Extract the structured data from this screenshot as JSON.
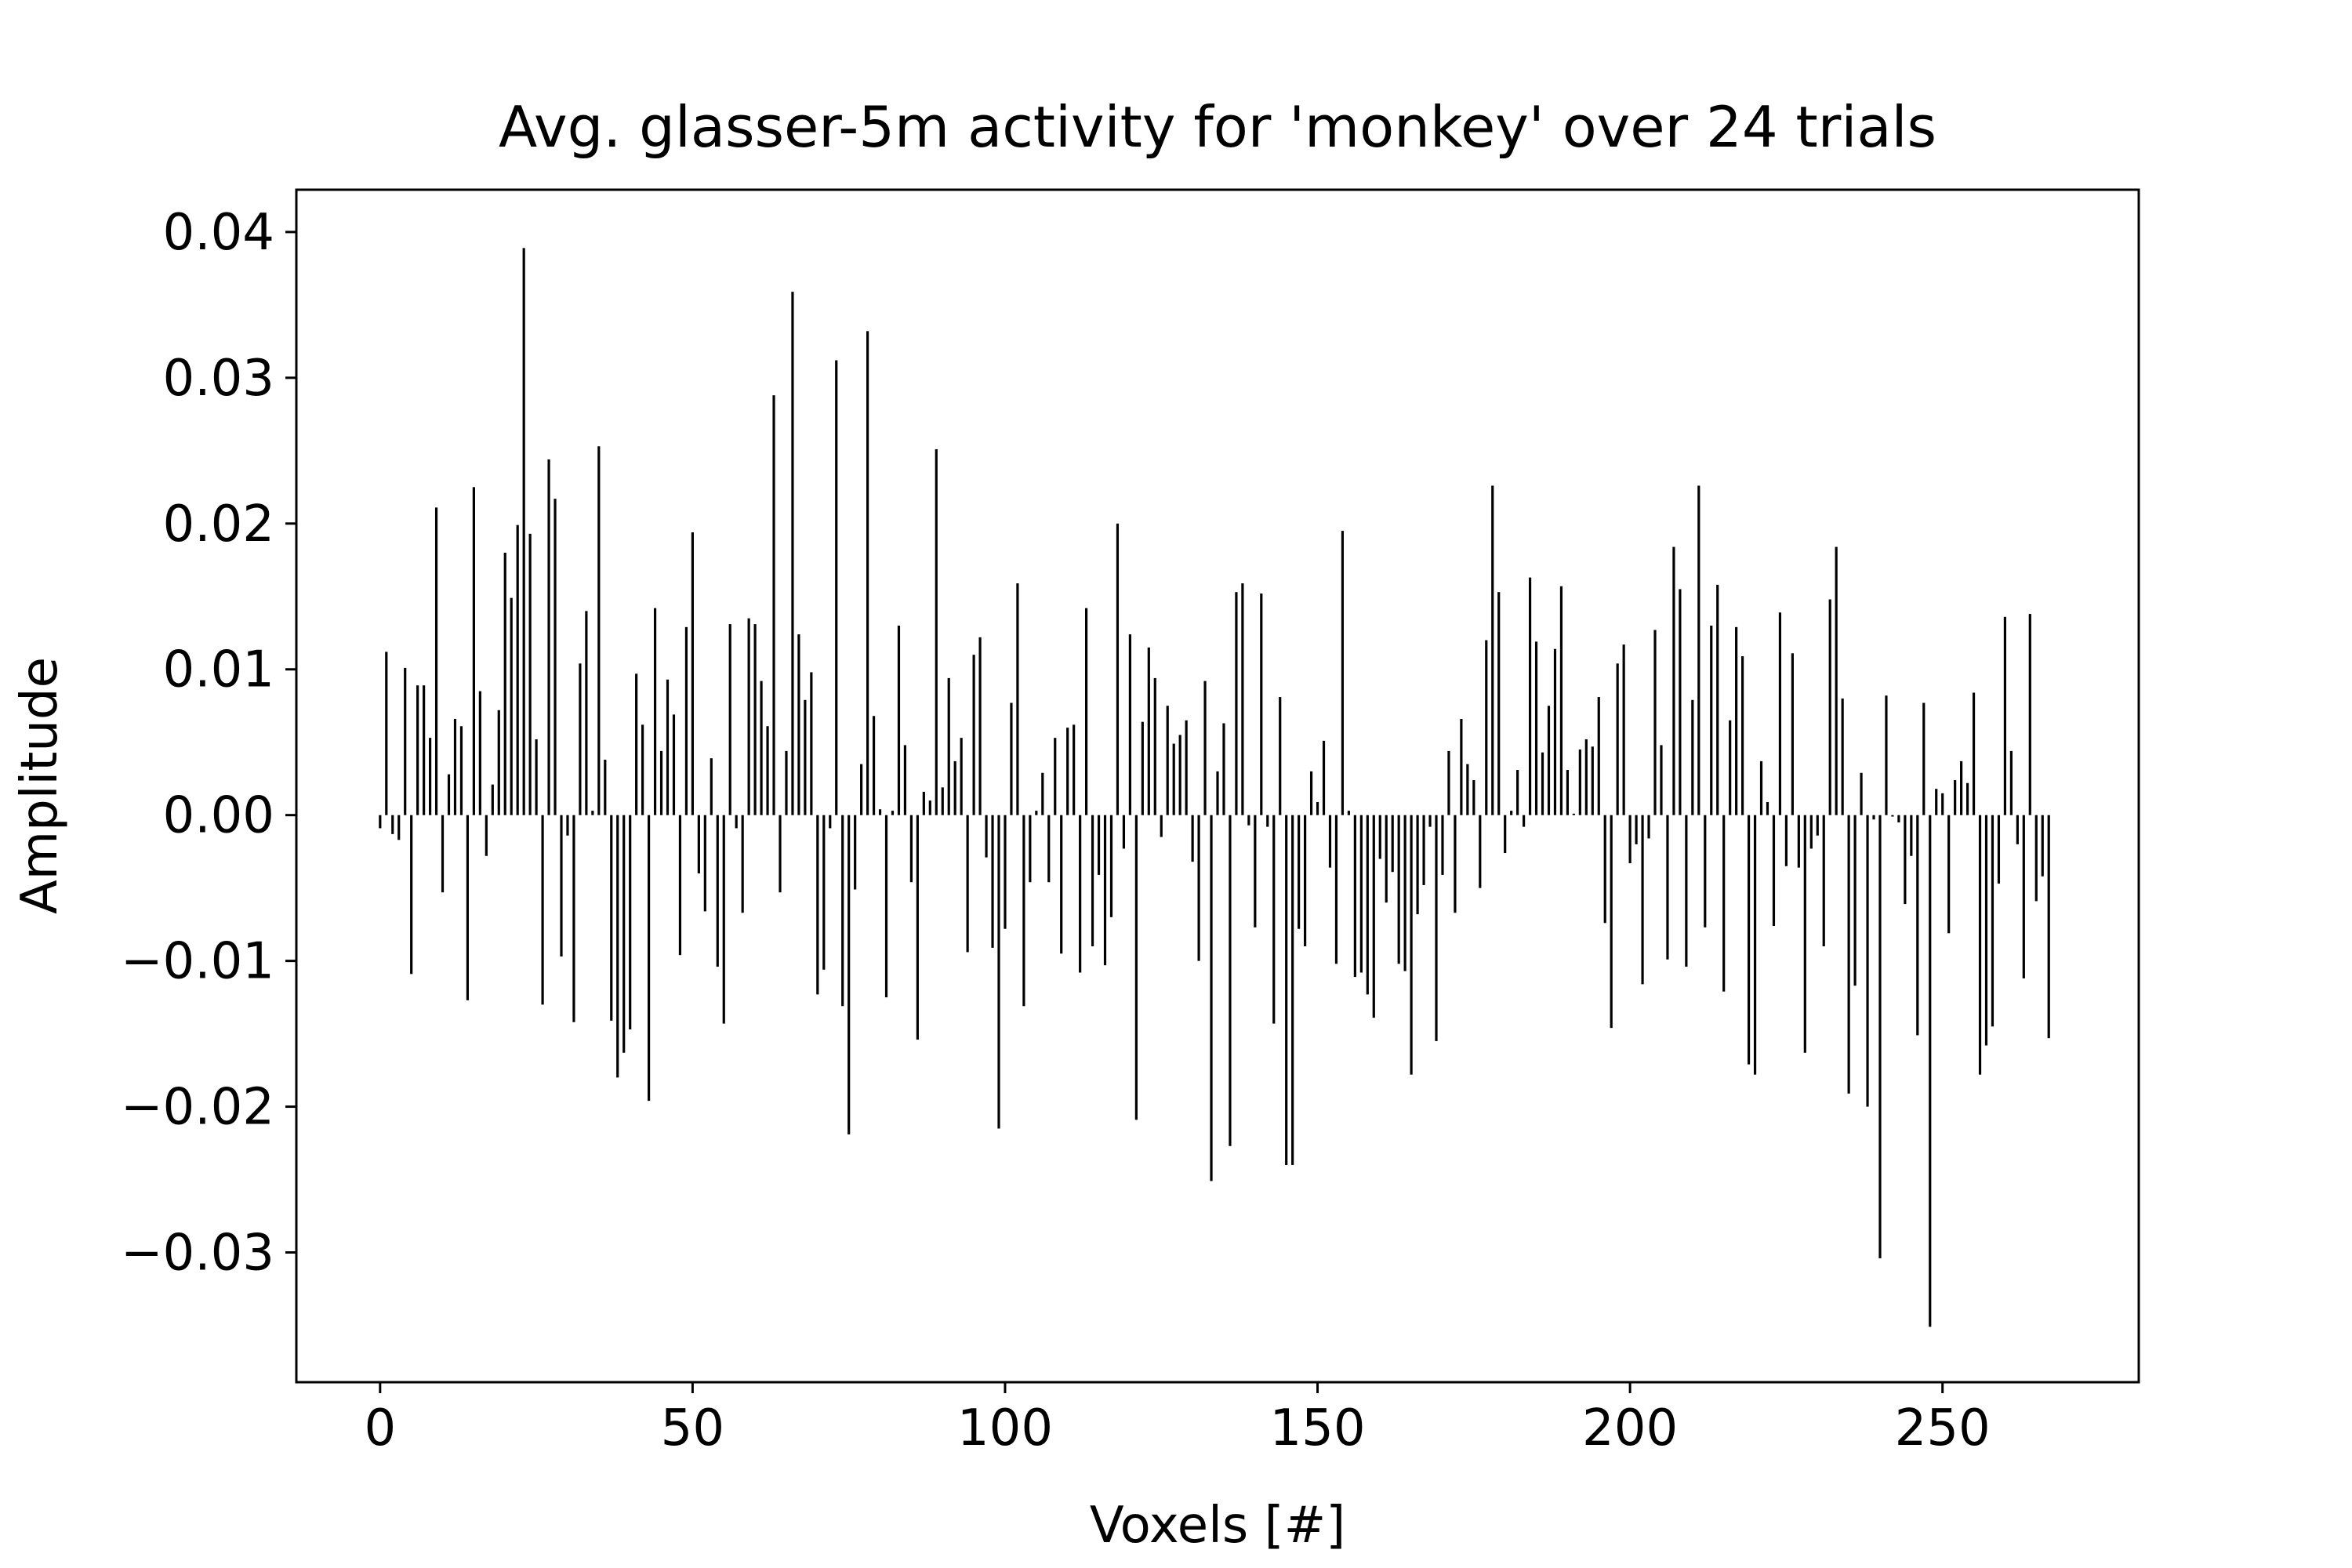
{
  "chart_data": {
    "type": "bar",
    "title": "Avg. glasser-5m activity for 'monkey' over 24 trials",
    "xlabel": "Voxels [#]",
    "ylabel": "Amplitude",
    "xlim": [
      -13.4,
      281.4
    ],
    "ylim": [
      -0.0389,
      0.0429
    ],
    "xticks": [
      0,
      50,
      100,
      150,
      200,
      250
    ],
    "xtick_labels": [
      "0",
      "50",
      "100",
      "150",
      "200",
      "250"
    ],
    "yticks": [
      -0.03,
      -0.02,
      -0.01,
      0.0,
      0.01,
      0.02,
      0.03,
      0.04
    ],
    "ytick_labels": [
      "−0.03",
      "−0.02",
      "−0.01",
      "0.00",
      "0.01",
      "0.02",
      "0.03",
      "0.04"
    ],
    "grid": false,
    "legend": "none",
    "bar_color": "#000000",
    "bar_width": 0.4,
    "x_start": 0,
    "values": [
      -0.0009,
      0.0112,
      -0.0013,
      -0.0017,
      0.0101,
      -0.0109,
      0.0089,
      0.0089,
      0.0053,
      0.0211,
      -0.0053,
      0.0028,
      0.0066,
      0.0061,
      -0.0127,
      0.0225,
      0.0085,
      -0.0028,
      0.0021,
      0.0072,
      0.018,
      0.0149,
      0.0199,
      0.0389,
      0.0193,
      0.0052,
      -0.013,
      0.0244,
      0.0217,
      -0.0097,
      -0.0014,
      -0.0142,
      0.0104,
      0.014,
      0.0003,
      0.0253,
      0.0038,
      -0.0141,
      -0.018,
      -0.0163,
      -0.0147,
      0.0097,
      0.0062,
      -0.0196,
      0.0142,
      0.0044,
      0.0093,
      0.0069,
      -0.0096,
      0.0129,
      0.0194,
      -0.004,
      -0.0066,
      0.0039,
      -0.0104,
      -0.0143,
      0.0131,
      -0.0009,
      -0.0067,
      0.0135,
      0.0131,
      0.0092,
      0.0061,
      0.0288,
      -0.0053,
      0.0044,
      0.0359,
      0.0124,
      0.0079,
      0.0098,
      -0.0123,
      -0.0106,
      -0.0009,
      0.0312,
      -0.0131,
      -0.0219,
      -0.0051,
      0.0035,
      0.0332,
      0.0068,
      0.0004,
      -0.0125,
      0.0003,
      0.013,
      0.0048,
      -0.0046,
      -0.0154,
      0.0016,
      0.001,
      0.0251,
      0.0019,
      0.0094,
      0.0037,
      0.0053,
      -0.0094,
      0.011,
      0.0122,
      -0.0029,
      -0.0091,
      -0.0215,
      -0.0078,
      0.0077,
      0.0159,
      -0.0131,
      -0.0046,
      0.0003,
      0.0029,
      -0.0046,
      0.0053,
      -0.0095,
      0.006,
      0.0062,
      -0.0108,
      0.0142,
      -0.009,
      -0.0041,
      -0.0103,
      -0.007,
      0.02,
      -0.0023,
      0.0124,
      -0.0209,
      0.0064,
      0.0115,
      0.0094,
      -0.0015,
      0.0075,
      0.0049,
      0.0055,
      0.0065,
      -0.0032,
      -0.01,
      0.0092,
      -0.0251,
      0.003,
      0.0063,
      -0.0227,
      0.0153,
      0.0159,
      -0.0007,
      -0.0077,
      0.0152,
      -0.0008,
      -0.0143,
      0.0081,
      -0.024,
      -0.024,
      -0.0078,
      -0.009,
      0.003,
      0.0009,
      0.0051,
      -0.0036,
      -0.0102,
      0.0195,
      0.0003,
      -0.0111,
      -0.0108,
      -0.0123,
      -0.0139,
      -0.003,
      -0.006,
      -0.0039,
      -0.0102,
      -0.0107,
      -0.0178,
      -0.0068,
      -0.0048,
      -0.0008,
      -0.0155,
      -0.0041,
      0.0044,
      -0.0067,
      0.0066,
      0.0035,
      0.0024,
      -0.005,
      0.012,
      0.0226,
      0.0153,
      -0.0026,
      0.0003,
      0.0031,
      -0.0008,
      0.0163,
      0.0119,
      0.0043,
      0.0075,
      0.0114,
      0.0157,
      0.0031,
      0.0001,
      0.0045,
      0.0052,
      0.0047,
      0.0081,
      -0.0074,
      -0.0146,
      0.0104,
      0.0117,
      -0.0033,
      -0.002,
      -0.0116,
      -0.0016,
      0.0127,
      0.0048,
      -0.0099,
      0.0184,
      0.0155,
      -0.0104,
      0.0079,
      0.0226,
      -0.0077,
      0.013,
      0.0158,
      -0.0121,
      0.0065,
      0.0129,
      0.0109,
      -0.0171,
      -0.0178,
      0.0037,
      0.0009,
      -0.0076,
      0.0139,
      -0.0035,
      0.0111,
      -0.0036,
      -0.0163,
      -0.0023,
      -0.0014,
      -0.009,
      0.0148,
      0.0184,
      0.008,
      -0.0191,
      -0.0117,
      0.0029,
      -0.02,
      -0.0003,
      -0.0304,
      0.0082,
      -0.0001,
      -0.0005,
      -0.0061,
      -0.0028,
      -0.0151,
      0.0077,
      -0.0351,
      0.0018,
      0.0015,
      -0.0081,
      0.0024,
      0.0037,
      0.0022,
      0.0084,
      -0.0178,
      -0.0158,
      -0.0145,
      -0.0047,
      0.0136,
      0.0044,
      -0.002,
      -0.0112,
      0.0138,
      -0.0059,
      -0.0042,
      -0.0153
    ]
  }
}
